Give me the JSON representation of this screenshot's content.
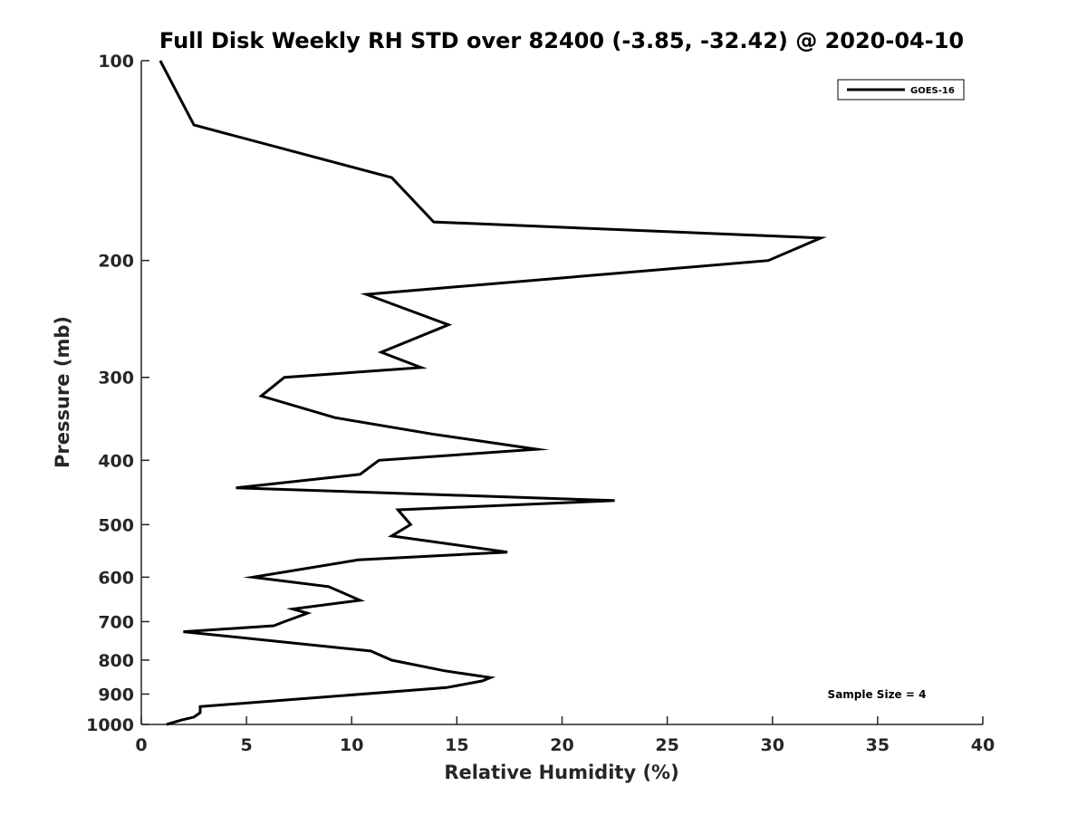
{
  "chart_data": {
    "type": "line",
    "title": "Full Disk Weekly RH STD over 82400 (-3.85, -32.42) @ 2020-04-10",
    "xlabel": "Relative Humidity (%)",
    "ylabel": "Pressure (mb)",
    "xlim": [
      0,
      40
    ],
    "ylim": [
      100,
      1000
    ],
    "yscale": "log",
    "y_reversed": true,
    "grid": false,
    "x_ticks": [
      0,
      5,
      10,
      15,
      20,
      25,
      30,
      35,
      40
    ],
    "y_ticks": [
      100,
      200,
      300,
      400,
      500,
      600,
      700,
      800,
      900,
      1000
    ],
    "legend": {
      "position": "top-right",
      "entries": [
        "GOES-16"
      ]
    },
    "annotation": "Sample Size = 4",
    "series": [
      {
        "name": "GOES-16",
        "color": "#000000",
        "points": [
          [
            0.9,
            100
          ],
          [
            2.5,
            125
          ],
          [
            11.9,
            150
          ],
          [
            13.9,
            175
          ],
          [
            32.3,
            185
          ],
          [
            29.8,
            200
          ],
          [
            10.7,
            225
          ],
          [
            14.6,
            250
          ],
          [
            11.4,
            275
          ],
          [
            13.3,
            290
          ],
          [
            6.8,
            300
          ],
          [
            5.7,
            320
          ],
          [
            9.2,
            345
          ],
          [
            13.8,
            365
          ],
          [
            18.8,
            385
          ],
          [
            11.3,
            400
          ],
          [
            10.4,
            420
          ],
          [
            4.5,
            440
          ],
          [
            22.5,
            460
          ],
          [
            12.2,
            475
          ],
          [
            12.8,
            500
          ],
          [
            11.9,
            520
          ],
          [
            17.4,
            550
          ],
          [
            10.3,
            565
          ],
          [
            5.3,
            600
          ],
          [
            8.9,
            620
          ],
          [
            10.4,
            650
          ],
          [
            7.2,
            670
          ],
          [
            7.9,
            680
          ],
          [
            6.8,
            700
          ],
          [
            6.3,
            710
          ],
          [
            2.0,
            725
          ],
          [
            10.9,
            775
          ],
          [
            11.9,
            800
          ],
          [
            14.4,
            830
          ],
          [
            16.6,
            850
          ],
          [
            16.2,
            860
          ],
          [
            14.5,
            880
          ],
          [
            2.8,
            940
          ],
          [
            2.8,
            960
          ],
          [
            2.5,
            975
          ],
          [
            1.9,
            985
          ],
          [
            1.2,
            1000
          ]
        ]
      }
    ]
  }
}
